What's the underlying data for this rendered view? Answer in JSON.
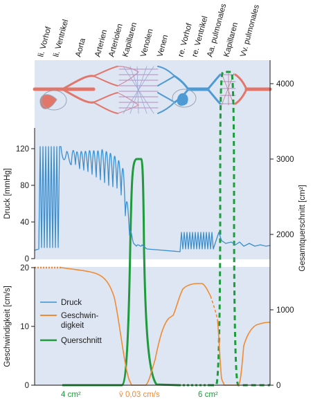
{
  "top_labels": [
    "li. Vorhof",
    "li. Ventrikel",
    "Aorta",
    "Arterien",
    "Arteriolen",
    "Kapillaren",
    "Venolen",
    "Venen",
    "re. Vorhof",
    "re. Ventrikel",
    "Aa. pulmonales",
    "Kapillaren",
    "Vv. pulmonales"
  ],
  "axes": {
    "pressure_label": "Druck [mmHg]",
    "pressure_ticks": [
      "0",
      "40",
      "80",
      "120"
    ],
    "velocity_label": "Geschwindigkeit [cm/s]",
    "velocity_ticks": [
      "0",
      "10",
      "20"
    ],
    "area_label": "Gesamtquerschnitt [cm²]",
    "area_ticks": [
      "0",
      "1000",
      "2000",
      "3000",
      "4000"
    ]
  },
  "legend": {
    "druck": "Druck",
    "geschw_1": "Geschwin-",
    "geschw_2": "digkeit",
    "querschnitt": "Querschnitt"
  },
  "annotations": {
    "area_aorta": "4 cm²",
    "v_kapillar": "v̄ 0,03 cm/s",
    "area_pulm": "6 cm²"
  },
  "colors": {
    "panel_bg": "#dde6f2",
    "arterial_red": "#e2766a",
    "venous_blue": "#4e9ad4",
    "druck": "#3a8fd0",
    "geschwindigkeit": "#f28a30",
    "querschnitt": "#1f9a3c"
  },
  "chart_data": {
    "type": "line",
    "series": [
      {
        "name": "Druck",
        "unit": "mmHg"
      },
      {
        "name": "Geschwindigkeit",
        "unit": "cm/s"
      },
      {
        "name": "Querschnitt",
        "unit": "cm²"
      }
    ],
    "pressure_ylim": [
      0,
      140
    ],
    "velocity_ylim": [
      0,
      20
    ],
    "area_ylim": [
      0,
      4300
    ]
  }
}
